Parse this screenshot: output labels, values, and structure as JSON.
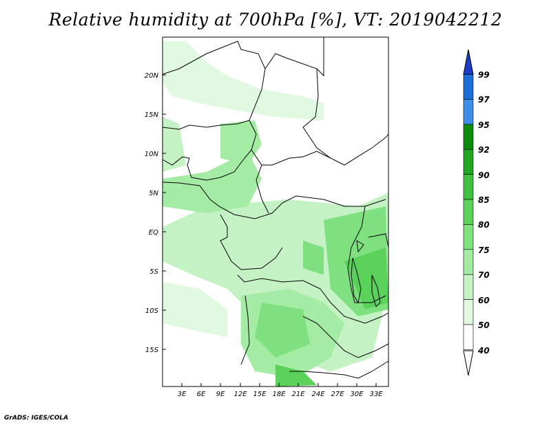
{
  "title": "Relative humidity at 700hPa [%], VT: 2019042212",
  "credit": "GrADS: IGES/COLA",
  "map": {
    "lat_ticks": [
      "20N",
      "15N",
      "10N",
      "5N",
      "EQ",
      "5S",
      "10S",
      "15S"
    ],
    "lon_ticks": [
      "3E",
      "6E",
      "9E",
      "12E",
      "15E",
      "18E",
      "21E",
      "24E",
      "27E",
      "30E",
      "33E"
    ]
  },
  "legend": {
    "levels": [
      "99",
      "97",
      "95",
      "92",
      "90",
      "85",
      "80",
      "75",
      "70",
      "60",
      "50",
      "40"
    ],
    "colors": [
      "#1e3cc8",
      "#1c6ed8",
      "#3d8ee8",
      "#0c8c0c",
      "#21a621",
      "#3fc03f",
      "#5ad25a",
      "#7ee07e",
      "#a4eba4",
      "#c4f2c4",
      "#e1f8e1",
      "#ffffff"
    ]
  },
  "colors": {
    "land_border": "#000000",
    "humid_light": "#c4f2c4",
    "humid_mid": "#7ee07e",
    "humid_dark": "#3fc03f"
  }
}
